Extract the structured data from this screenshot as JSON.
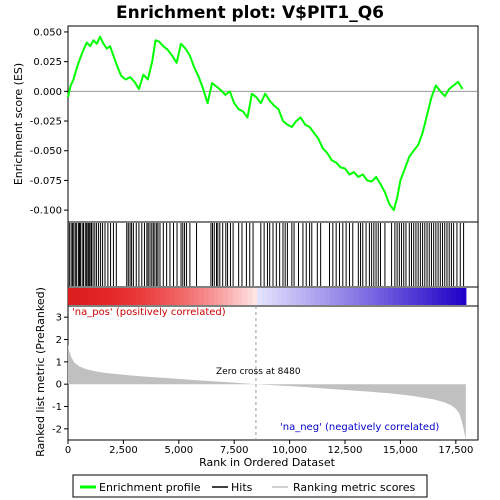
{
  "chart_data": {
    "type": "line",
    "title": "Enrichment plot: V$PIT1_Q6",
    "x_axis": {
      "label": "Rank in Ordered Dataset",
      "range": [
        0,
        18500
      ],
      "ticks": [
        0,
        2500,
        5000,
        7500,
        10000,
        12500,
        15000,
        17500
      ],
      "tick_labels": [
        "0",
        "2,500",
        "5,000",
        "7,500",
        "10,000",
        "12,500",
        "15,000",
        "17,500"
      ]
    },
    "panels": {
      "enrichment": {
        "ylabel": "Enrichment score (ES)",
        "ylim": [
          -0.11,
          0.055
        ],
        "ticks": [
          0.05,
          0.025,
          0.0,
          -0.025,
          -0.05,
          -0.075,
          -0.1
        ],
        "tick_labels": [
          "0.050",
          "0.025",
          "0.000",
          "-0.025",
          "-0.050",
          "-0.075",
          "-0.100"
        ],
        "series": [
          {
            "name": "Enrichment profile",
            "color": "#00ff00",
            "x": [
              0,
              120,
              250,
              400,
              550,
              700,
              850,
              1000,
              1150,
              1300,
              1450,
              1600,
              1750,
              1900,
              2050,
              2200,
              2400,
              2600,
              2800,
              3000,
              3200,
              3400,
              3600,
              3800,
              3950,
              4100,
              4300,
              4500,
              4700,
              4900,
              5100,
              5300,
              5500,
              5700,
              5900,
              6100,
              6300,
              6500,
              6700,
              6900,
              7100,
              7300,
              7500,
              7700,
              7900,
              8100,
              8300,
              8500,
              8700,
              8900,
              9100,
              9300,
              9500,
              9700,
              9900,
              10100,
              10300,
              10500,
              10700,
              10900,
              11100,
              11300,
              11500,
              11700,
              11900,
              12100,
              12300,
              12500,
              12700,
              12900,
              13100,
              13300,
              13500,
              13700,
              13900,
              14100,
              14300,
              14500,
              14700,
              14850,
              15000,
              15200,
              15400,
              15600,
              15800,
              16000,
              16200,
              16400,
              16600,
              16800,
              17000,
              17200,
              17400,
              17600,
              17800
            ],
            "y": [
              -0.005,
              0.005,
              0.01,
              0.02,
              0.028,
              0.035,
              0.041,
              0.038,
              0.043,
              0.04,
              0.046,
              0.04,
              0.036,
              0.038,
              0.03,
              0.022,
              0.013,
              0.01,
              0.012,
              0.008,
              0.002,
              0.014,
              0.01,
              0.025,
              0.043,
              0.042,
              0.038,
              0.035,
              0.03,
              0.024,
              0.04,
              0.036,
              0.03,
              0.02,
              0.012,
              0.002,
              -0.01,
              0.007,
              0.004,
              0.001,
              -0.003,
              0.0,
              -0.01,
              -0.015,
              -0.017,
              -0.022,
              -0.002,
              -0.005,
              -0.01,
              -0.002,
              -0.008,
              -0.012,
              -0.015,
              -0.025,
              -0.028,
              -0.03,
              -0.025,
              -0.022,
              -0.028,
              -0.03,
              -0.035,
              -0.04,
              -0.048,
              -0.052,
              -0.058,
              -0.06,
              -0.064,
              -0.065,
              -0.07,
              -0.068,
              -0.072,
              -0.07,
              -0.075,
              -0.076,
              -0.072,
              -0.078,
              -0.085,
              -0.095,
              -0.1,
              -0.09,
              -0.075,
              -0.065,
              -0.055,
              -0.05,
              -0.045,
              -0.035,
              -0.02,
              -0.005,
              0.005,
              0.0,
              -0.004,
              0.002,
              0.005,
              0.008,
              0.002
            ]
          }
        ]
      },
      "hits": {
        "legend": "Hits",
        "positions": [
          60,
          140,
          200,
          260,
          330,
          390,
          470,
          520,
          560,
          640,
          700,
          780,
          840,
          900,
          950,
          1000,
          1060,
          1130,
          1210,
          1290,
          1380,
          1470,
          1560,
          1670,
          1800,
          1920,
          2050,
          2180,
          2650,
          2720,
          2800,
          2870,
          2950,
          3080,
          3200,
          3330,
          3450,
          3560,
          3620,
          3700,
          3780,
          3850,
          3920,
          4000,
          4060,
          4150,
          4300,
          4450,
          4600,
          4760,
          4920,
          5100,
          5180,
          5260,
          5350,
          5500,
          5800,
          6450,
          6520,
          6600,
          6700,
          6760,
          6850,
          6980,
          7120,
          7200,
          7330,
          7450,
          7700,
          7850,
          8050,
          8200,
          8350,
          8700,
          8850,
          9000,
          9100,
          9250,
          9400,
          9550,
          9700,
          9800,
          9900,
          10100,
          10200,
          10400,
          10600,
          10750,
          10900,
          11000,
          11250,
          11400,
          11800,
          11950,
          12100,
          12250,
          12400,
          12550,
          12700,
          12850,
          13100,
          13200,
          13300,
          13450,
          13600,
          13700,
          13800,
          13900,
          14000,
          14100,
          14300,
          14600,
          14750,
          14850,
          14950,
          15050,
          15150,
          15250,
          15400,
          15500,
          15600,
          15700,
          15800,
          15900,
          16000,
          16100,
          16200,
          16300,
          16400,
          16500,
          16600,
          16700,
          16800,
          16900,
          17000,
          17100,
          17200,
          17300,
          17400,
          17550,
          17700,
          17850
        ]
      },
      "ranked_metric": {
        "ylabel": "Ranked list metric (PreRanked)",
        "legend": "Ranking metric scores",
        "ylim": [
          -2.5,
          3.5
        ],
        "ticks": [
          3,
          2,
          1,
          0,
          -1,
          -2
        ],
        "tick_labels": [
          "3",
          "2",
          "1",
          "0",
          "-1",
          "-2"
        ],
        "x": [
          0,
          50,
          150,
          300,
          500,
          800,
          1200,
          1700,
          2500,
          3500,
          4500,
          5500,
          6500,
          7500,
          8480,
          9500,
          10500,
          11500,
          12500,
          13500,
          14500,
          15500,
          16500,
          17000,
          17300,
          17500,
          17650,
          17750,
          17850,
          17950
        ],
        "y": [
          1.8,
          1.5,
          1.2,
          0.95,
          0.8,
          0.68,
          0.58,
          0.5,
          0.42,
          0.34,
          0.27,
          0.2,
          0.13,
          0.07,
          0.0,
          -0.06,
          -0.12,
          -0.19,
          -0.26,
          -0.33,
          -0.41,
          -0.52,
          -0.68,
          -0.82,
          -0.95,
          -1.1,
          -1.3,
          -1.6,
          -2.0,
          -2.5
        ],
        "zero_cross_label": "Zero cross at 8480",
        "zero_cross": 8480,
        "pos_label": "'na_pos' (positively correlated)",
        "neg_label": "'na_neg' (negatively correlated)"
      }
    },
    "legend": [
      {
        "name": "Enrichment profile",
        "color": "#00ff00"
      },
      {
        "name": "Hits",
        "color": "#000000"
      },
      {
        "name": "Ranking metric scores",
        "color": "#c0c0c0"
      }
    ],
    "colors": {
      "profile": "#00ff00",
      "metric_fill": "#c0c0c0",
      "pos_text": "#cc0000",
      "neg_text": "#0000cc"
    }
  }
}
